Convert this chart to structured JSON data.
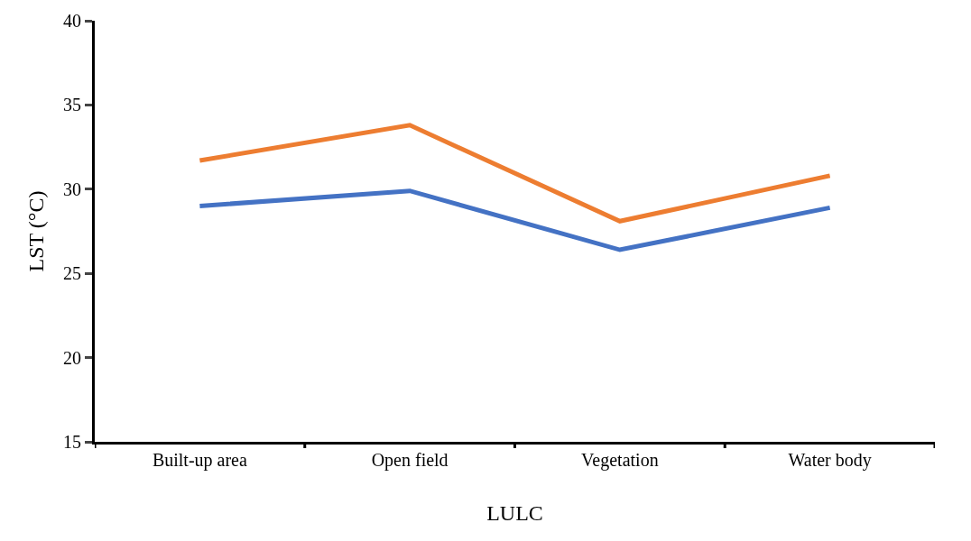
{
  "chart_data": {
    "type": "line",
    "xlabel": "LULC",
    "ylabel": "LST (°C)",
    "categories": [
      "Built-up area",
      "Open field",
      "Vegetation",
      "Water body"
    ],
    "series": [
      {
        "color": "#ed7d31",
        "values": [
          31.7,
          33.8,
          28.1,
          30.8
        ]
      },
      {
        "color": "#4472c4",
        "values": [
          29.0,
          29.9,
          26.4,
          28.9
        ]
      }
    ],
    "ylim": [
      15,
      40
    ],
    "yticks": [
      15,
      20,
      25,
      30,
      35,
      40
    ],
    "marker": "none",
    "line_style": "solid"
  }
}
